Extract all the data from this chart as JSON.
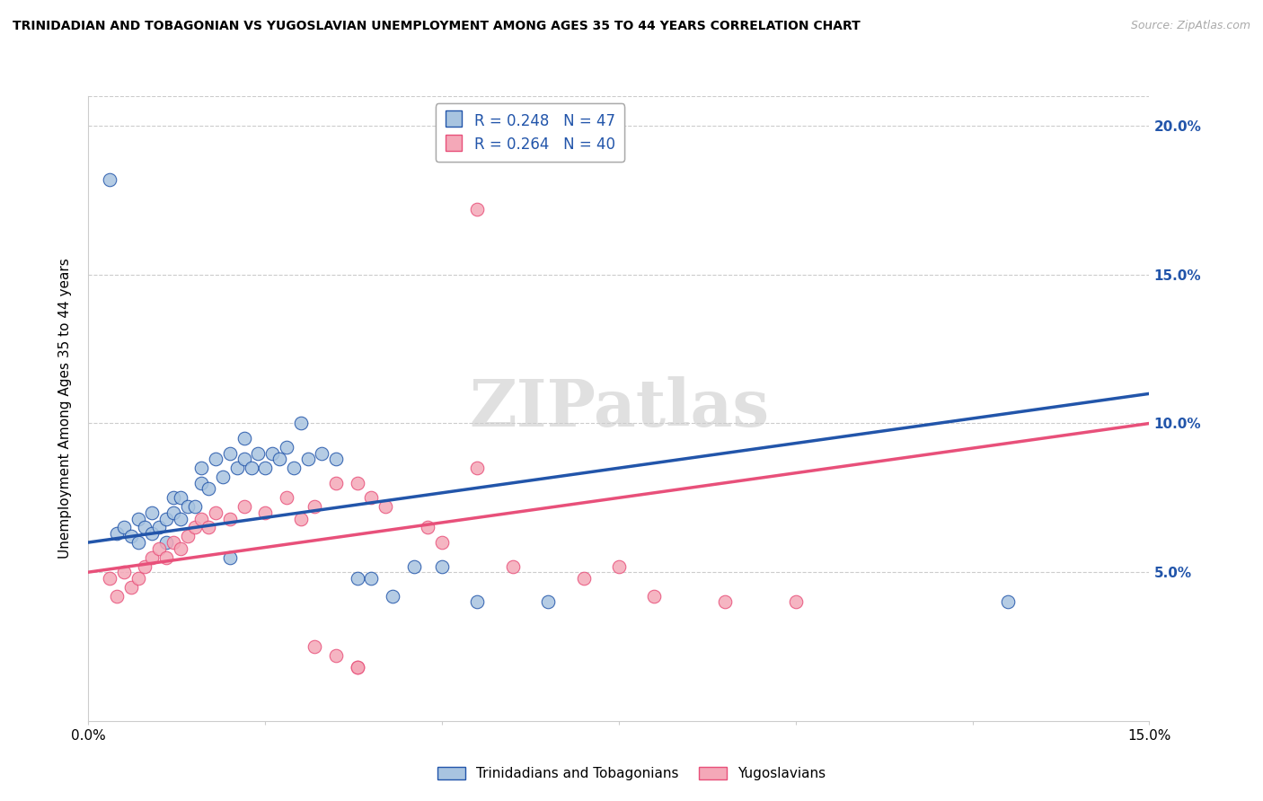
{
  "title": "TRINIDADIAN AND TOBAGONIAN VS YUGOSLAVIAN UNEMPLOYMENT AMONG AGES 35 TO 44 YEARS CORRELATION CHART",
  "source": "Source: ZipAtlas.com",
  "ylabel": "Unemployment Among Ages 35 to 44 years",
  "xmin": 0.0,
  "xmax": 0.15,
  "ymin": 0.0,
  "ymax": 0.21,
  "legend_r_blue": "R = 0.248",
  "legend_n_blue": "N = 47",
  "legend_r_pink": "R = 0.264",
  "legend_n_pink": "N = 40",
  "legend_label_blue": "Trinidadians and Tobagonians",
  "legend_label_pink": "Yugoslavians",
  "blue_color": "#A8C4E0",
  "pink_color": "#F4A8B8",
  "line_blue_color": "#2255AA",
  "line_pink_color": "#E8507A",
  "blue_x": [
    0.004,
    0.005,
    0.006,
    0.007,
    0.007,
    0.008,
    0.009,
    0.009,
    0.01,
    0.011,
    0.011,
    0.012,
    0.012,
    0.013,
    0.013,
    0.014,
    0.015,
    0.016,
    0.016,
    0.017,
    0.018,
    0.019,
    0.02,
    0.021,
    0.022,
    0.022,
    0.023,
    0.024,
    0.025,
    0.026,
    0.027,
    0.028,
    0.029,
    0.031,
    0.033,
    0.035,
    0.038,
    0.04,
    0.043,
    0.046,
    0.05,
    0.055,
    0.065,
    0.03,
    0.02,
    0.13,
    0.003
  ],
  "blue_y": [
    0.063,
    0.065,
    0.062,
    0.06,
    0.068,
    0.065,
    0.063,
    0.07,
    0.065,
    0.068,
    0.06,
    0.07,
    0.075,
    0.068,
    0.075,
    0.072,
    0.072,
    0.08,
    0.085,
    0.078,
    0.088,
    0.082,
    0.09,
    0.085,
    0.088,
    0.095,
    0.085,
    0.09,
    0.085,
    0.09,
    0.088,
    0.092,
    0.085,
    0.088,
    0.09,
    0.088,
    0.048,
    0.048,
    0.042,
    0.052,
    0.052,
    0.04,
    0.04,
    0.1,
    0.055,
    0.04,
    0.182
  ],
  "pink_x": [
    0.003,
    0.004,
    0.005,
    0.006,
    0.007,
    0.008,
    0.009,
    0.01,
    0.011,
    0.012,
    0.013,
    0.014,
    0.015,
    0.016,
    0.017,
    0.018,
    0.02,
    0.022,
    0.025,
    0.028,
    0.03,
    0.032,
    0.035,
    0.038,
    0.04,
    0.042,
    0.048,
    0.05,
    0.06,
    0.07,
    0.075,
    0.08,
    0.09,
    0.1,
    0.055,
    0.032,
    0.035,
    0.038,
    0.038,
    0.055
  ],
  "pink_y": [
    0.048,
    0.042,
    0.05,
    0.045,
    0.048,
    0.052,
    0.055,
    0.058,
    0.055,
    0.06,
    0.058,
    0.062,
    0.065,
    0.068,
    0.065,
    0.07,
    0.068,
    0.072,
    0.07,
    0.075,
    0.068,
    0.072,
    0.08,
    0.08,
    0.075,
    0.072,
    0.065,
    0.06,
    0.052,
    0.048,
    0.052,
    0.042,
    0.04,
    0.04,
    0.085,
    0.025,
    0.022,
    0.018,
    0.018,
    0.172
  ],
  "blue_line_x": [
    0.0,
    0.15
  ],
  "blue_line_y": [
    0.06,
    0.11
  ],
  "pink_line_x": [
    0.0,
    0.15
  ],
  "pink_line_y": [
    0.05,
    0.1
  ]
}
